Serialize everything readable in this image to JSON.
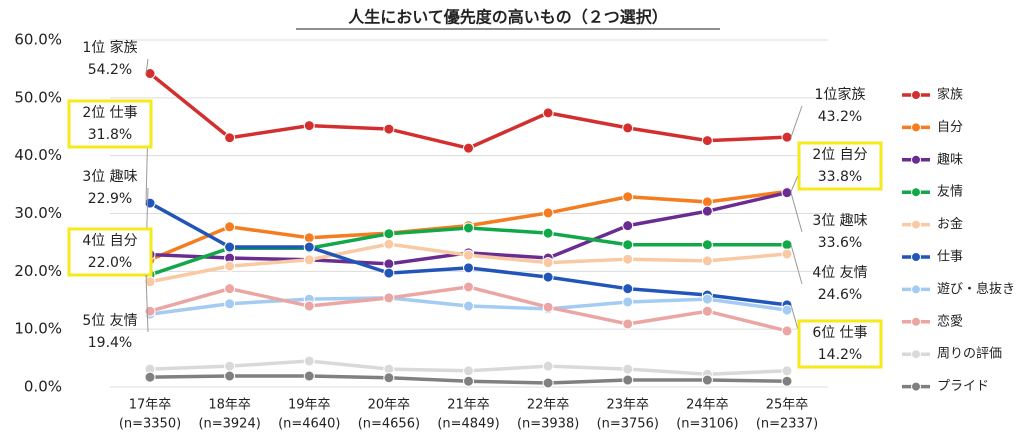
{
  "chart_data": {
    "type": "line",
    "title": "人生において優先度の高いもの（２つ選択）",
    "categories": [
      "17年卒",
      "18年卒",
      "19年卒",
      "20年卒",
      "21年卒",
      "22年卒",
      "23年卒",
      "24年卒",
      "25年卒"
    ],
    "category_sub": [
      "(n=3350)",
      "(n=3924)",
      "(n=4640)",
      "(n=4656)",
      "(n=4849)",
      "(n=3938)",
      "(n=3756)",
      "(n=3106)",
      "(n=2337)"
    ],
    "ylim": [
      0,
      60
    ],
    "yticks": [
      {
        "value": 0,
        "label": "0.0%"
      },
      {
        "value": 10,
        "label": "10.0%"
      },
      {
        "value": 20,
        "label": "20.0%"
      },
      {
        "value": 30,
        "label": "30.0%"
      },
      {
        "value": 40,
        "label": "40.0%"
      },
      {
        "value": 50,
        "label": "50.0%"
      },
      {
        "value": 60,
        "label": "60.0%"
      }
    ],
    "grid": true,
    "series": [
      {
        "name": "家族",
        "color": "#d32f2f",
        "values": [
          54.2,
          43.1,
          45.2,
          44.6,
          41.3,
          47.4,
          44.8,
          42.6,
          43.2
        ]
      },
      {
        "name": "自分",
        "color": "#f57c1f",
        "values": [
          22.0,
          27.7,
          25.8,
          26.6,
          27.9,
          30.1,
          32.9,
          32.0,
          33.8
        ]
      },
      {
        "name": "趣味",
        "color": "#6a2c91",
        "values": [
          22.9,
          22.3,
          22.0,
          21.3,
          23.2,
          22.3,
          27.9,
          30.4,
          33.6
        ]
      },
      {
        "name": "友情",
        "color": "#12a84a",
        "values": [
          19.4,
          24.0,
          24.0,
          26.5,
          27.5,
          26.6,
          24.6,
          24.6,
          24.6
        ]
      },
      {
        "name": "お金",
        "color": "#f9c9a3",
        "values": [
          18.2,
          20.9,
          22.0,
          24.7,
          22.8,
          21.5,
          22.1,
          21.8,
          23.0
        ]
      },
      {
        "name": "仕事",
        "color": "#2155b8",
        "values": [
          31.8,
          24.2,
          24.2,
          19.7,
          20.6,
          19.0,
          17.0,
          15.9,
          14.2
        ]
      },
      {
        "name": "遊び・息抜き",
        "color": "#a4cbf2",
        "values": [
          12.6,
          14.4,
          15.2,
          15.4,
          14.0,
          13.5,
          14.7,
          15.2,
          13.3
        ]
      },
      {
        "name": "恋愛",
        "color": "#eba5a3",
        "values": [
          13.1,
          17.0,
          14.0,
          15.4,
          17.3,
          13.8,
          10.9,
          13.1,
          9.7
        ]
      },
      {
        "name": "周りの評価",
        "color": "#d9d9d9",
        "values": [
          3.1,
          3.6,
          4.5,
          3.1,
          2.8,
          3.6,
          3.1,
          2.2,
          2.8
        ]
      },
      {
        "name": "プライド",
        "color": "#808080",
        "values": [
          1.7,
          1.9,
          1.9,
          1.6,
          1.0,
          0.7,
          1.2,
          1.2,
          1.0
        ]
      }
    ],
    "annotations": [
      {
        "rank": "1位 家族",
        "value": "54.2%",
        "highlight": false
      },
      {
        "rank": "2位 仕事",
        "value": "31.8%",
        "highlight": true
      },
      {
        "rank": "3位 趣味",
        "value": "22.9%",
        "highlight": false
      },
      {
        "rank": "4位 自分",
        "value": "22.0%",
        "highlight": true
      },
      {
        "rank": "5位 友情",
        "value": "19.4%",
        "highlight": false
      },
      {
        "rank": "1位家族",
        "value": "43.2%",
        "highlight": false
      },
      {
        "rank": "2位 自分",
        "value": "33.8%",
        "highlight": true
      },
      {
        "rank": "3位 趣味",
        "value": "33.6%",
        "highlight": false
      },
      {
        "rank": "4位 友情",
        "value": "24.6%",
        "highlight": false
      },
      {
        "rank": "6位 仕事",
        "value": "14.2%",
        "highlight": true
      }
    ]
  }
}
